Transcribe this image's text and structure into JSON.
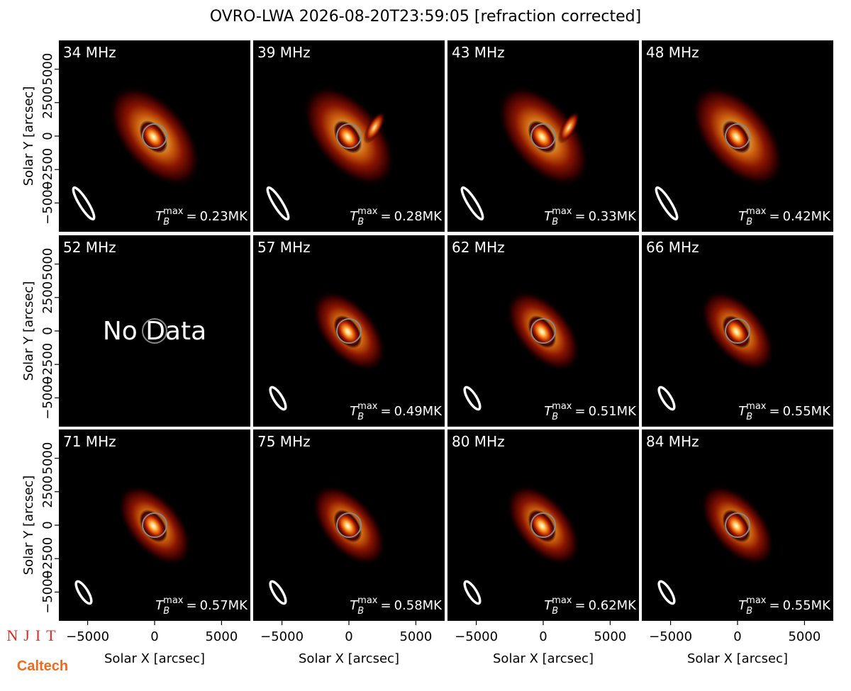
{
  "title": "OVRO-LWA 2026-08-20T23:59:05 [refraction corrected]",
  "xlabel": "Solar X [arcsec]",
  "ylabel": "Solar Y [arcsec]",
  "xlim": [
    -7150,
    7150
  ],
  "ylim": [
    -7150,
    7150
  ],
  "xticks": [
    {
      "value": -5000,
      "label": "−5000"
    },
    0,
    5000
  ],
  "yticks": [
    {
      "value": -5000,
      "label": "−5000"
    },
    {
      "value": -2500,
      "label": "−2500"
    },
    0,
    2500,
    5000
  ],
  "tmax_symbol": {
    "base": "T",
    "sub": "B",
    "sup": "max",
    "eq": "="
  },
  "no_data": "No Data",
  "panels": [
    {
      "freq": "34 MHz",
      "tmax": "0.23MK"
    },
    {
      "freq": "39 MHz",
      "tmax": "0.28MK"
    },
    {
      "freq": "43 MHz",
      "tmax": "0.33MK"
    },
    {
      "freq": "48 MHz",
      "tmax": "0.42MK"
    },
    {
      "freq": "52 MHz"
    },
    {
      "freq": "57 MHz",
      "tmax": "0.49MK"
    },
    {
      "freq": "62 MHz",
      "tmax": "0.51MK"
    },
    {
      "freq": "66 MHz",
      "tmax": "0.55MK"
    },
    {
      "freq": "71 MHz",
      "tmax": "0.57MK"
    },
    {
      "freq": "75 MHz",
      "tmax": "0.58MK"
    },
    {
      "freq": "80 MHz",
      "tmax": "0.62MK"
    },
    {
      "freq": "84 MHz",
      "tmax": "0.55MK"
    }
  ],
  "logos": [
    "NJIT",
    "Caltech"
  ]
}
